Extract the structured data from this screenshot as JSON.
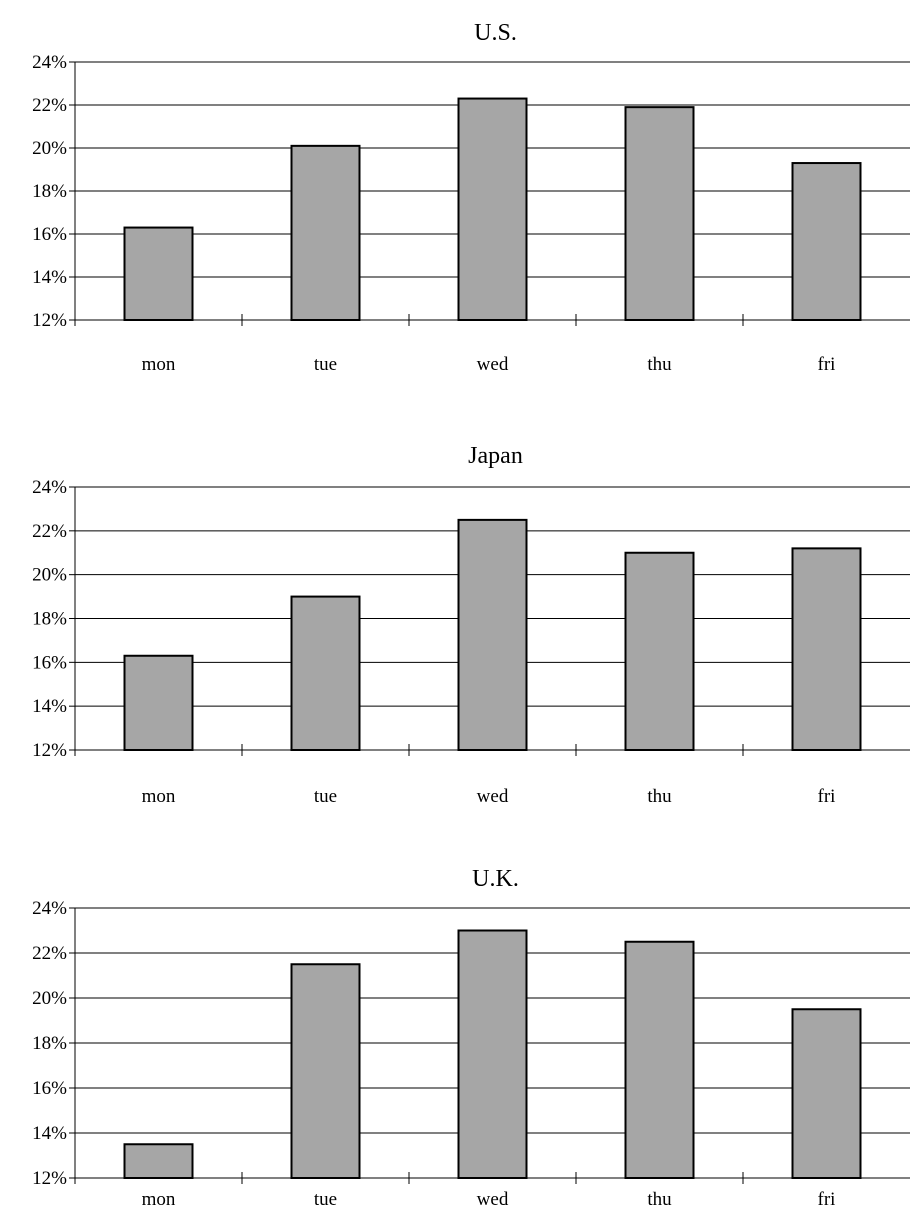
{
  "chart_data": [
    {
      "type": "bar",
      "title": "U.S.",
      "categories": [
        "mon",
        "tue",
        "wed",
        "thu",
        "fri"
      ],
      "values": [
        16.3,
        20.1,
        22.3,
        21.9,
        19.3
      ],
      "ylim": [
        12,
        24
      ],
      "yticks": [
        "12%",
        "14%",
        "16%",
        "18%",
        "20%",
        "22%",
        "24%"
      ],
      "xlabel": "",
      "ylabel": "",
      "grid": true,
      "bar_color": "#a6a6a6",
      "edge_color": "#000000"
    },
    {
      "type": "bar",
      "title": "Japan",
      "categories": [
        "mon",
        "tue",
        "wed",
        "thu",
        "fri"
      ],
      "values": [
        16.3,
        19.0,
        22.5,
        21.0,
        21.2
      ],
      "ylim": [
        12,
        24
      ],
      "yticks": [
        "12%",
        "14%",
        "16%",
        "18%",
        "20%",
        "22%",
        "24%"
      ],
      "xlabel": "",
      "ylabel": "",
      "grid": true,
      "bar_color": "#a6a6a6",
      "edge_color": "#000000"
    },
    {
      "type": "bar",
      "title": "U.K.",
      "categories": [
        "mon",
        "tue",
        "wed",
        "thu",
        "fri"
      ],
      "values": [
        13.5,
        21.5,
        23.0,
        22.5,
        19.5
      ],
      "ylim": [
        12,
        24
      ],
      "yticks": [
        "12%",
        "14%",
        "16%",
        "18%",
        "20%",
        "22%",
        "24%"
      ],
      "xlabel": "",
      "ylabel": "",
      "grid": true,
      "bar_color": "#a6a6a6",
      "edge_color": "#000000"
    }
  ]
}
